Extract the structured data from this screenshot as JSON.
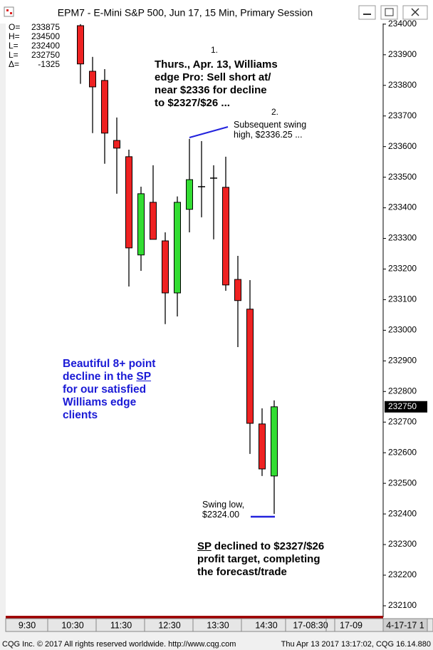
{
  "window_title": "EPM7 - E-Mini S&P 500, Jun 17, 15 Min, Primary Session",
  "chart_data": {
    "type": "candlestick",
    "up_color": "#33dd33",
    "down_color": "#ee2222",
    "open": [
      233995,
      233846,
      233816,
      233620,
      233567,
      233246,
      233418,
      233292,
      233122,
      233395,
      233469,
      233497,
      233467,
      233166,
      233069,
      232694,
      232524
    ],
    "high": [
      234000,
      233893,
      233853,
      233695,
      233590,
      233469,
      233539,
      233320,
      233437,
      233625,
      233618,
      233539,
      233567,
      233243,
      233164,
      232745,
      232771
    ],
    "low": [
      233805,
      233644,
      233544,
      233446,
      233143,
      233194,
      233297,
      233020,
      233045,
      233320,
      233369,
      233297,
      233129,
      232945,
      232596,
      232524,
      232400
    ],
    "close": [
      233870,
      233795,
      233644,
      233595,
      233269,
      233446,
      233297,
      233122,
      233418,
      233492,
      233469,
      233497,
      233148,
      233097,
      232696,
      232547,
      232750
    ],
    "ylim": [
      232065,
      234002
    ],
    "yticks": [
      234000,
      233900,
      233800,
      233700,
      233600,
      233500,
      233400,
      233300,
      233200,
      233100,
      233000,
      232900,
      232800,
      232700,
      232600,
      232500,
      232400,
      232300,
      232200,
      232100
    ],
    "last": 232750,
    "x_labels": [
      "9:30",
      "10:30",
      "11:30",
      "12:30",
      "13:30",
      "14:30",
      "17-08:30",
      "17-09",
      "4-17-17 1"
    ],
    "info": [
      {
        "label": "O=",
        "value": 233875
      },
      {
        "label": "H=",
        "value": 234500
      },
      {
        "label": "L=",
        "value": 232400
      },
      {
        "label": "L=",
        "value": 232750
      },
      {
        "label": "Δ=",
        "value": -1325
      }
    ],
    "annotations": {
      "marker_1": "1.",
      "forecast": [
        "Thurs., Apr. 13, Williams",
        "edge Pro: Sell short at/",
        "near $2336 for decline",
        "to $2327/$26 ..."
      ],
      "marker_2": "2.",
      "swing_high": [
        "Subsequent swing",
        "high, $2336.25 ..."
      ],
      "blue_note": [
        [
          "Beautiful 8+ point"
        ],
        [
          "decline in the ",
          "SP"
        ],
        [
          "for our satisfied"
        ],
        [
          "Williams edge"
        ],
        [
          "clients"
        ]
      ],
      "swing_low": [
        "Swing low,",
        "$2324.00"
      ],
      "result": [
        [
          "",
          "SP",
          " declined to $2327/$26"
        ],
        [
          "profit target, completing"
        ],
        [
          "the forecast/trade"
        ]
      ]
    }
  },
  "footer": {
    "left": "CQG Inc. © 2017 All rights reserved worldwide. http://www.cqg.com",
    "right": "Thu Apr 13 2017 13:17:02, CQG 16.14.880"
  }
}
